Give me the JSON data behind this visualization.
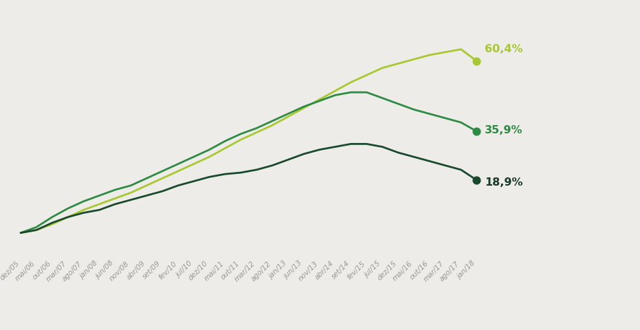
{
  "xlabel_labels": [
    "dez/05",
    "mai/06",
    "out/06",
    "mar/07",
    "ago/07",
    "jan/08",
    "jun/08",
    "nov/08",
    "abr/09",
    "set/09",
    "fev/10",
    "jul/10",
    "dez/10",
    "mai/11",
    "out/11",
    "mar/12",
    "ago/12",
    "jan/13",
    "jun/13",
    "nov/13",
    "abr/14",
    "set/14",
    "fev/15",
    "jul/15",
    "dez/15",
    "mai/16",
    "out/16",
    "mar/17",
    "ago/17",
    "jan/18"
  ],
  "line1_color": "#a8c832",
  "line2_color": "#2e8b44",
  "line3_color": "#1a4a2e",
  "line1_label": "60,4%",
  "line2_label": "35,9%",
  "line3_label": "18,9%",
  "line1_values": [
    0.5,
    1.5,
    3.5,
    6.0,
    8.5,
    10.5,
    12.5,
    14.5,
    17.0,
    19.5,
    22.0,
    24.5,
    27.0,
    30.0,
    33.0,
    35.5,
    38.0,
    41.0,
    44.0,
    47.0,
    50.0,
    53.0,
    55.5,
    58.0,
    59.5,
    61.0,
    62.5,
    63.5,
    64.5,
    60.4
  ],
  "line2_values": [
    0.5,
    2.5,
    6.0,
    9.0,
    11.5,
    13.5,
    15.5,
    17.0,
    19.5,
    22.0,
    24.5,
    27.0,
    29.5,
    32.5,
    35.0,
    37.0,
    39.5,
    42.0,
    44.5,
    46.5,
    48.5,
    49.5,
    49.5,
    47.5,
    45.5,
    43.5,
    42.0,
    40.5,
    39.0,
    35.9
  ],
  "line3_values": [
    0.5,
    1.5,
    4.0,
    6.0,
    7.5,
    8.5,
    10.5,
    12.0,
    13.5,
    15.0,
    17.0,
    18.5,
    20.0,
    21.0,
    21.5,
    22.5,
    24.0,
    26.0,
    28.0,
    29.5,
    30.5,
    31.5,
    31.5,
    30.5,
    28.5,
    27.0,
    25.5,
    24.0,
    22.5,
    18.9
  ],
  "bg_color": "#eeece8",
  "grid_color": "#d5d2cd",
  "label1_color": "#a8c832",
  "label2_color": "#2e8b44",
  "label3_color": "#1a3a28"
}
